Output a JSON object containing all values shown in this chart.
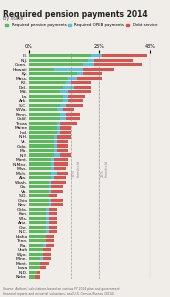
{
  "title": "Required pension payments 2014",
  "subtitle": "By state",
  "legend_labels": [
    "Required pension payments",
    "Required OPEB payments",
    "Debt service"
  ],
  "legend_colors": [
    "#5cb85c",
    "#5bc0de",
    "#d9534f"
  ],
  "x_ticks": [
    0.0,
    0.25,
    0.43
  ],
  "x_tick_labels": [
    "0%",
    "25%",
    "43%"
  ],
  "states": [
    "Ill.",
    "N.J.",
    "Conn.",
    "Hawaii",
    "Ky.",
    "Mass.",
    "R.I.",
    "Del.",
    "Md.",
    "La.",
    "Ark.",
    "S.C.",
    "W.Va.",
    "Penn.",
    "Calif.",
    "Texas",
    "Maine",
    "Ind.",
    "N.H.",
    "Vt.",
    "Colo.",
    "Mo.",
    "N.Y.",
    "Mont.",
    "N.Mex.",
    "Miss.",
    "Mich.",
    "Ala.",
    "Wash.",
    "Ga.",
    "Va.",
    "S.D.",
    "Ohio",
    "Nev.",
    "Okla.",
    "Kan.",
    "Wis.",
    "Ariz.",
    "Ore.",
    "N.C.",
    "Idaho",
    "Tenn.",
    "Fla.",
    "Utah",
    "Wyo.",
    "Minn.",
    "Mont.",
    "Iowa",
    "N.D.",
    "Nebr."
  ],
  "pension": [
    0.22,
    0.21,
    0.19,
    0.09,
    0.17,
    0.14,
    0.13,
    0.12,
    0.11,
    0.12,
    0.12,
    0.11,
    0.1,
    0.11,
    0.11,
    0.1,
    0.1,
    0.1,
    0.09,
    0.09,
    0.09,
    0.09,
    0.09,
    0.08,
    0.08,
    0.08,
    0.08,
    0.08,
    0.07,
    0.07,
    0.07,
    0.07,
    0.07,
    0.07,
    0.06,
    0.06,
    0.06,
    0.06,
    0.06,
    0.06,
    0.06,
    0.06,
    0.05,
    0.05,
    0.05,
    0.04,
    0.04,
    0.04,
    0.03,
    0.02
  ],
  "opeb": [
    0.04,
    0.02,
    0.04,
    0.1,
    0.02,
    0.03,
    0.02,
    0.04,
    0.03,
    0.02,
    0.02,
    0.02,
    0.02,
    0.02,
    0.02,
    0.01,
    0.01,
    0.01,
    0.01,
    0.01,
    0.01,
    0.01,
    0.02,
    0.01,
    0.01,
    0.01,
    0.02,
    0.01,
    0.01,
    0.01,
    0.01,
    0.0,
    0.01,
    0.01,
    0.01,
    0.01,
    0.01,
    0.01,
    0.01,
    0.01,
    0.0,
    0.0,
    0.01,
    0.0,
    0.0,
    0.01,
    0.0,
    0.0,
    0.0,
    0.0
  ],
  "debt": [
    0.16,
    0.14,
    0.17,
    0.11,
    0.07,
    0.09,
    0.07,
    0.06,
    0.08,
    0.06,
    0.05,
    0.06,
    0.04,
    0.05,
    0.05,
    0.06,
    0.04,
    0.04,
    0.05,
    0.04,
    0.04,
    0.04,
    0.04,
    0.05,
    0.05,
    0.04,
    0.04,
    0.04,
    0.05,
    0.04,
    0.04,
    0.03,
    0.04,
    0.04,
    0.03,
    0.03,
    0.03,
    0.03,
    0.03,
    0.03,
    0.03,
    0.03,
    0.03,
    0.03,
    0.03,
    0.03,
    0.03,
    0.02,
    0.01,
    0.02
  ],
  "source_text": "Source: Authors' calculations based on various FY 2014 plan and government\nfinancial reports and actuarial valuations; and U.S. Census Bureau (2014).",
  "threshold_15": 0.15,
  "threshold_25": 0.25,
  "xlim": 0.47,
  "bar_height": 0.7,
  "bg_color": "#f0ede8"
}
